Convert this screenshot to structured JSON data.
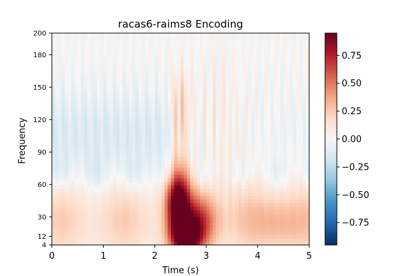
{
  "chart_data": {
    "type": "heatmap",
    "title": "racas6-raims8 Encoding",
    "xlabel": "Time (s)",
    "ylabel": "Frequency",
    "xlim": [
      0,
      5
    ],
    "ylim": [
      4,
      200
    ],
    "x_ticks": [
      "0",
      "1",
      "2",
      "3",
      "4",
      "5"
    ],
    "y_ticks": [
      "4",
      "12",
      "30",
      "60",
      "90",
      "120",
      "150",
      "180",
      "200"
    ],
    "colorbar": {
      "colormap": "RdBu_r",
      "vmin": -0.95,
      "vmax": 0.95,
      "ticks": [
        "−0.75",
        "−0.50",
        "−0.25",
        "0.00",
        "0.25",
        "0.50",
        "0.75"
      ]
    },
    "features": [
      {
        "t": 2.45,
        "f": 45,
        "value": 0.95
      },
      {
        "t": 2.55,
        "f": 10,
        "value": 0.9
      },
      {
        "t": 2.85,
        "f": 25,
        "value": 0.7
      },
      {
        "t": 2.5,
        "f": 125,
        "value": 0.4
      },
      {
        "t": 1.0,
        "f": 110,
        "value": -0.2
      },
      {
        "t": 4.4,
        "f": 25,
        "value": 0.3
      }
    ]
  }
}
